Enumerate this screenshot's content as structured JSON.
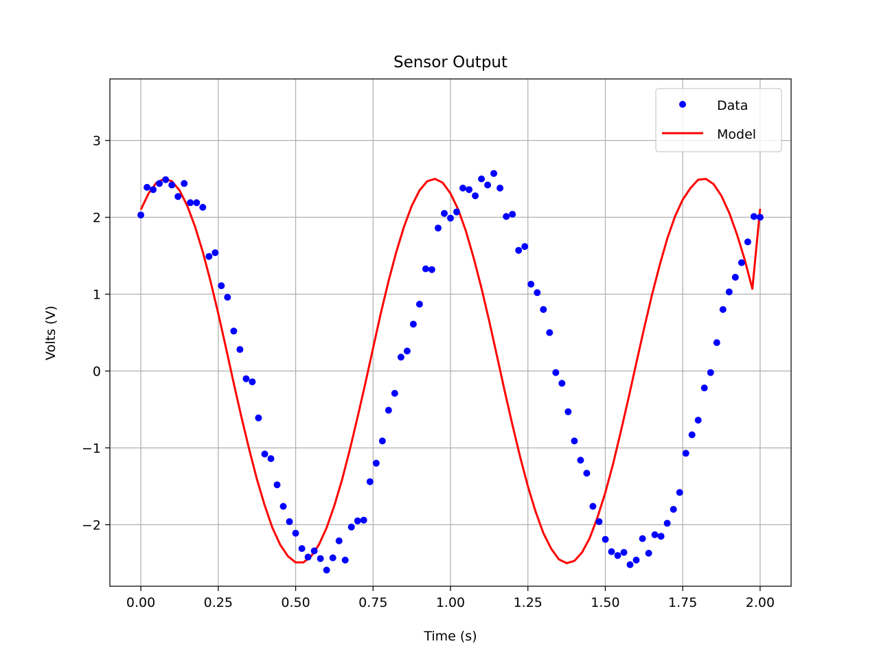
{
  "chart_data": {
    "type": "scatter",
    "title": "Sensor Output",
    "xlabel": "Time (s)",
    "ylabel": "Volts (V)",
    "xlim": [
      -0.1,
      2.1
    ],
    "ylim": [
      -2.8,
      3.8
    ],
    "xticks": [
      0.0,
      0.25,
      0.5,
      0.75,
      1.0,
      1.25,
      1.5,
      1.75,
      2.0
    ],
    "xtick_labels": [
      "0.00",
      "0.25",
      "0.50",
      "0.75",
      "1.00",
      "1.25",
      "1.50",
      "1.75",
      "2.00"
    ],
    "yticks": [
      -2,
      -1,
      0,
      1,
      2,
      3
    ],
    "ytick_labels": [
      "−2",
      "−1",
      "0",
      "1",
      "2",
      "3"
    ],
    "grid": true,
    "legend_position": "top-right",
    "series": [
      {
        "name": "Data",
        "kind": "scatter",
        "color": "#0000ff",
        "x": [
          0.0,
          0.02,
          0.04,
          0.06,
          0.08,
          0.1,
          0.12,
          0.14,
          0.16,
          0.18,
          0.2,
          0.22,
          0.24,
          0.26,
          0.28,
          0.3,
          0.32,
          0.34,
          0.36,
          0.38,
          0.4,
          0.42,
          0.44,
          0.46,
          0.48,
          0.5,
          0.52,
          0.54,
          0.56,
          0.58,
          0.6,
          0.62,
          0.64,
          0.66,
          0.68,
          0.7,
          0.72,
          0.74,
          0.76,
          0.78,
          0.8,
          0.82,
          0.84,
          0.86,
          0.88,
          0.9,
          0.92,
          0.94,
          0.96,
          0.98,
          1.0,
          1.02,
          1.04,
          1.06,
          1.08,
          1.1,
          1.12,
          1.14,
          1.16,
          1.18,
          1.2,
          1.22,
          1.24,
          1.26,
          1.28,
          1.3,
          1.32,
          1.34,
          1.36,
          1.38,
          1.4,
          1.42,
          1.44,
          1.46,
          1.48,
          1.5,
          1.52,
          1.54,
          1.56,
          1.58,
          1.6,
          1.62,
          1.64,
          1.66,
          1.68,
          1.7,
          1.72,
          1.74,
          1.76,
          1.78,
          1.8,
          1.82,
          1.84,
          1.86,
          1.88,
          1.9,
          1.92,
          1.94,
          1.96,
          1.98,
          2.0
        ],
        "y": [
          2.03,
          2.39,
          2.36,
          2.44,
          2.49,
          2.42,
          2.27,
          2.44,
          2.19,
          2.19,
          2.13,
          1.49,
          1.54,
          1.11,
          0.96,
          0.52,
          0.28,
          -0.1,
          -0.14,
          -0.61,
          -1.08,
          -1.14,
          -1.48,
          -1.76,
          -1.96,
          -2.11,
          -2.31,
          -2.42,
          -2.34,
          -2.44,
          -2.59,
          -2.43,
          -2.21,
          -2.46,
          -2.03,
          -1.95,
          -1.94,
          -1.44,
          -1.2,
          -0.91,
          -0.51,
          -0.29,
          0.18,
          0.26,
          0.61,
          0.87,
          1.33,
          1.32,
          1.86,
          2.05,
          1.99,
          2.07,
          2.38,
          2.36,
          2.28,
          2.5,
          2.42,
          2.57,
          2.38,
          2.01,
          2.04,
          1.57,
          1.62,
          1.13,
          1.02,
          0.8,
          0.5,
          -0.02,
          -0.16,
          -0.53,
          -0.91,
          -1.16,
          -1.33,
          -1.76,
          -1.96,
          -2.19,
          -2.35,
          -2.4,
          -2.36,
          -2.52,
          -2.46,
          -2.18,
          -2.37,
          -2.13,
          -2.15,
          -1.98,
          -1.8,
          -1.58,
          -1.07,
          -0.83,
          -0.64,
          -0.22,
          -0.02,
          0.37,
          0.8,
          1.03,
          1.22,
          1.41,
          1.68,
          2.01,
          2.0
        ]
      },
      {
        "name": "Model",
        "kind": "line",
        "color": "#ff0000",
        "x": [
          0.0,
          0.025,
          0.05,
          0.075,
          0.1,
          0.125,
          0.15,
          0.175,
          0.2,
          0.225,
          0.25,
          0.275,
          0.3,
          0.325,
          0.35,
          0.375,
          0.4,
          0.425,
          0.45,
          0.475,
          0.5,
          0.525,
          0.55,
          0.575,
          0.6,
          0.625,
          0.65,
          0.675,
          0.7,
          0.725,
          0.75,
          0.775,
          0.8,
          0.825,
          0.85,
          0.875,
          0.9,
          0.925,
          0.95,
          0.975,
          1.0,
          1.025,
          1.05,
          1.075,
          1.1,
          1.125,
          1.15,
          1.175,
          1.2,
          1.225,
          1.25,
          1.275,
          1.3,
          1.325,
          1.35,
          1.375,
          1.4,
          1.425,
          1.45,
          1.475,
          1.5,
          1.525,
          1.55,
          1.575,
          1.6,
          1.625,
          1.65,
          1.675,
          1.7,
          1.725,
          1.75,
          1.775,
          1.8,
          1.825,
          1.85,
          1.875,
          1.9,
          1.925,
          1.95,
          1.975,
          2.0
        ],
        "y": [
          2.1,
          2.31,
          2.45,
          2.5,
          2.47,
          2.35,
          2.15,
          1.88,
          1.55,
          1.17,
          0.75,
          0.3,
          -0.16,
          -0.6,
          -1.02,
          -1.41,
          -1.75,
          -2.04,
          -2.26,
          -2.41,
          -2.49,
          -2.49,
          -2.41,
          -2.26,
          -2.04,
          -1.75,
          -1.41,
          -1.02,
          -0.6,
          -0.16,
          0.3,
          0.75,
          1.17,
          1.55,
          1.88,
          2.15,
          2.35,
          2.47,
          2.5,
          2.45,
          2.31,
          2.1,
          1.82,
          1.47,
          1.08,
          0.65,
          0.2,
          -0.26,
          -0.7,
          -1.12,
          -1.5,
          -1.83,
          -2.11,
          -2.31,
          -2.45,
          -2.5,
          -2.47,
          -2.36,
          -2.17,
          -1.9,
          -1.58,
          -1.21,
          -0.79,
          -0.35,
          0.1,
          0.55,
          0.98,
          1.37,
          1.72,
          2.01,
          2.23,
          2.38,
          2.49,
          2.5,
          2.43,
          2.28,
          2.06,
          1.78,
          1.45,
          1.07,
          2.11
        ]
      }
    ]
  }
}
